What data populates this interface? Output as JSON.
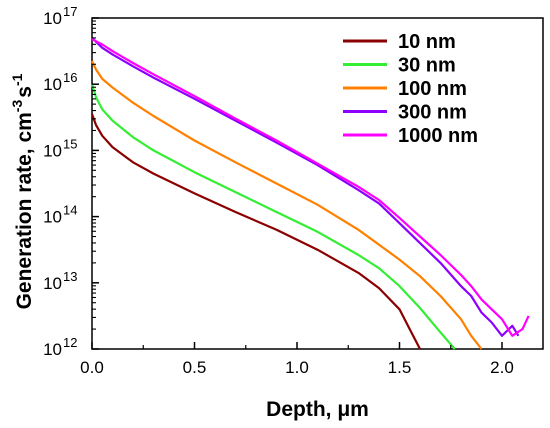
{
  "chart_data": {
    "type": "line",
    "title": "",
    "xlabel": "Depth, μm",
    "ylabel_main": "Generation rate, cm",
    "ylabel_exp1": "-3",
    "ylabel_mid": "s",
    "ylabel_exp2": "-1",
    "xlim": [
      0.0,
      2.2
    ],
    "ylim": [
      1000000000000.0,
      1e+17
    ],
    "y_scale": "log",
    "x_ticks": [
      "0.0",
      "0.5",
      "1.0",
      "1.5",
      "2.0"
    ],
    "x_tick_values": [
      0.0,
      0.5,
      1.0,
      1.5,
      2.0
    ],
    "y_ticks": [
      {
        "exp": 12,
        "base": "10",
        "sup": "12"
      },
      {
        "exp": 13,
        "base": "10",
        "sup": "13"
      },
      {
        "exp": 14,
        "base": "10",
        "sup": "14"
      },
      {
        "exp": 15,
        "base": "10",
        "sup": "15"
      },
      {
        "exp": 16,
        "base": "10",
        "sup": "16"
      },
      {
        "exp": 17,
        "base": "10",
        "sup": "17"
      }
    ],
    "grid": false,
    "legend_position": "top-right",
    "series": [
      {
        "name": "10 nm",
        "color": "#8b0000",
        "x": [
          0.0,
          0.02,
          0.05,
          0.1,
          0.2,
          0.3,
          0.5,
          0.7,
          0.9,
          1.1,
          1.3,
          1.4,
          1.5,
          1.55,
          1.6
        ],
        "y_log": [
          15.55,
          15.38,
          15.22,
          15.05,
          14.82,
          14.65,
          14.35,
          14.07,
          13.8,
          13.5,
          13.15,
          12.92,
          12.6,
          12.3,
          12.0
        ]
      },
      {
        "name": "30 nm",
        "color": "#33ee33",
        "x": [
          0.0,
          0.02,
          0.05,
          0.1,
          0.2,
          0.3,
          0.5,
          0.7,
          0.9,
          1.1,
          1.3,
          1.4,
          1.5,
          1.6,
          1.7,
          1.77
        ],
        "y_log": [
          16.0,
          15.8,
          15.62,
          15.45,
          15.2,
          15.0,
          14.67,
          14.37,
          14.07,
          13.77,
          13.42,
          13.22,
          12.95,
          12.62,
          12.25,
          12.0
        ]
      },
      {
        "name": "100 nm",
        "color": "#ff8000",
        "x": [
          0.0,
          0.02,
          0.05,
          0.1,
          0.2,
          0.3,
          0.5,
          0.7,
          0.9,
          1.1,
          1.3,
          1.5,
          1.6,
          1.7,
          1.8,
          1.85,
          1.9
        ],
        "y_log": [
          16.35,
          16.22,
          16.08,
          15.95,
          15.72,
          15.52,
          15.15,
          14.82,
          14.5,
          14.18,
          13.8,
          13.35,
          13.1,
          12.8,
          12.45,
          12.2,
          12.0
        ]
      },
      {
        "name": "300 nm",
        "color": "#8b00ff",
        "x": [
          0.0,
          0.05,
          0.1,
          0.2,
          0.3,
          0.5,
          0.7,
          0.9,
          1.1,
          1.3,
          1.4,
          1.5,
          1.6,
          1.7,
          1.8,
          1.85,
          1.9,
          1.95,
          2.0,
          2.05,
          2.08
        ],
        "y_log": [
          16.7,
          16.55,
          16.45,
          16.27,
          16.1,
          15.78,
          15.45,
          15.12,
          14.78,
          14.4,
          14.2,
          13.9,
          13.6,
          13.3,
          12.95,
          12.8,
          12.55,
          12.4,
          12.2,
          12.35,
          12.2
        ]
      },
      {
        "name": "1000 nm",
        "color": "#ff00ff",
        "x": [
          0.0,
          0.05,
          0.1,
          0.2,
          0.3,
          0.5,
          0.7,
          0.9,
          1.1,
          1.3,
          1.4,
          1.5,
          1.6,
          1.7,
          1.8,
          1.85,
          1.9,
          1.95,
          2.0,
          2.05,
          2.1,
          2.13
        ],
        "y_log": [
          16.68,
          16.6,
          16.5,
          16.32,
          16.15,
          15.82,
          15.48,
          15.15,
          14.8,
          14.45,
          14.25,
          13.98,
          13.7,
          13.42,
          13.12,
          12.95,
          12.75,
          12.6,
          12.45,
          12.2,
          12.3,
          12.5
        ]
      }
    ]
  }
}
